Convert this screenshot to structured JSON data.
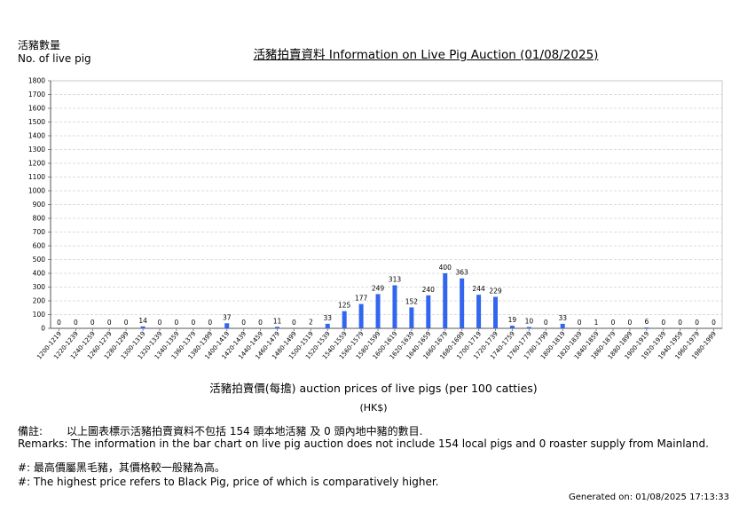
{
  "header": {
    "y_title_zh": "活豬數量",
    "y_title_en": "No. of live pig",
    "title": "活豬拍賣資料 Information on Live Pig Auction (01/08/2025)"
  },
  "chart_data": {
    "type": "bar",
    "title": "活豬拍賣資料 Information on Live Pig Auction (01/08/2025)",
    "ylabel": "活豬數量 No. of live pig",
    "xlabel": "活豬拍賣價(每擔) auction prices of live pigs (per 100 catties)",
    "xunit": "(HK$)",
    "ylim": [
      0,
      1800
    ],
    "yticks": [
      0,
      100,
      200,
      300,
      400,
      500,
      600,
      700,
      800,
      900,
      1000,
      1100,
      1200,
      1300,
      1400,
      1500,
      1600,
      1700,
      1800
    ],
    "grid": true,
    "bar_color": "#3366ee",
    "categories": [
      "1200-1219",
      "1220-1239",
      "1240-1259",
      "1260-1279",
      "1280-1299",
      "1300-1319",
      "1320-1339",
      "1340-1359",
      "1360-1379",
      "1380-1399",
      "1400-1419",
      "1420-1439",
      "1440-1459",
      "1460-1479",
      "1480-1499",
      "1500-1519",
      "1520-1539",
      "1540-1559",
      "1560-1579",
      "1580-1599",
      "1600-1619",
      "1620-1639",
      "1640-1659",
      "1660-1679",
      "1680-1699",
      "1700-1719",
      "1720-1739",
      "1740-1759",
      "1760-1779",
      "1780-1799",
      "1800-1819",
      "1820-1839",
      "1840-1859",
      "1860-1879",
      "1880-1899",
      "1900-1919",
      "1920-1939",
      "1940-1959",
      "1960-1979",
      "1980-1999"
    ],
    "values": [
      0,
      0,
      0,
      0,
      0,
      14,
      0,
      0,
      0,
      0,
      37,
      0,
      0,
      11,
      0,
      2,
      33,
      125,
      177,
      249,
      313,
      152,
      240,
      400,
      363,
      244,
      229,
      19,
      10,
      0,
      33,
      0,
      1,
      0,
      0,
      6,
      0,
      0,
      0,
      0
    ]
  },
  "footer": {
    "note_zh_label": "備註:",
    "note_zh_text": "以上圖表標示活豬拍賣資料不包括 154 頭本地活豬 及 0 頭內地中豬的數目.",
    "note_en": "Remarks: The information in the bar chart on live pig auction does not include 154 local pigs and 0 roaster supply from Mainland.",
    "hash_zh": "#: 最高價屬黑毛豬，其價格較一般豬為高。",
    "hash_en": "#: The highest price refers to Black Pig, price of which is comparatively higher.",
    "generated": "Generated on: 01/08/2025 17:13:33"
  }
}
